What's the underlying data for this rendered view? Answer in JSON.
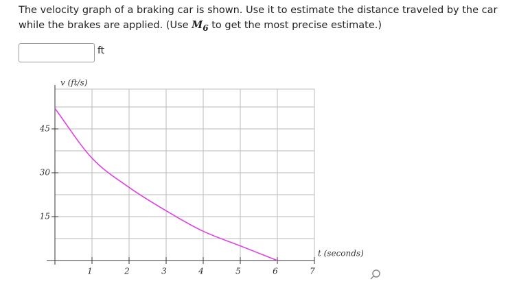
{
  "question": {
    "text_before": "The velocity graph of a braking car is shown. Use it to estimate the distance traveled by the car while the brakes are applied. (Use ",
    "symbol": "M",
    "subscript": "6",
    "text_after": " to get the most precise estimate.)"
  },
  "answer_unit": "ft",
  "chart_data": {
    "type": "line",
    "x_label": "t (seconds)",
    "y_label": "v (ft/s)",
    "x": [
      0,
      1,
      2,
      3,
      4,
      5,
      6
    ],
    "series": [
      {
        "color": "#e040e0",
        "values": [
          52,
          35,
          25,
          17,
          10,
          5,
          0
        ]
      }
    ],
    "xlim": [
      0,
      7
    ],
    "xticks": [
      1,
      2,
      3,
      4,
      5,
      6,
      7
    ],
    "ylim": [
      0,
      60
    ],
    "yticks": [
      15,
      30,
      45
    ],
    "grid": true
  }
}
